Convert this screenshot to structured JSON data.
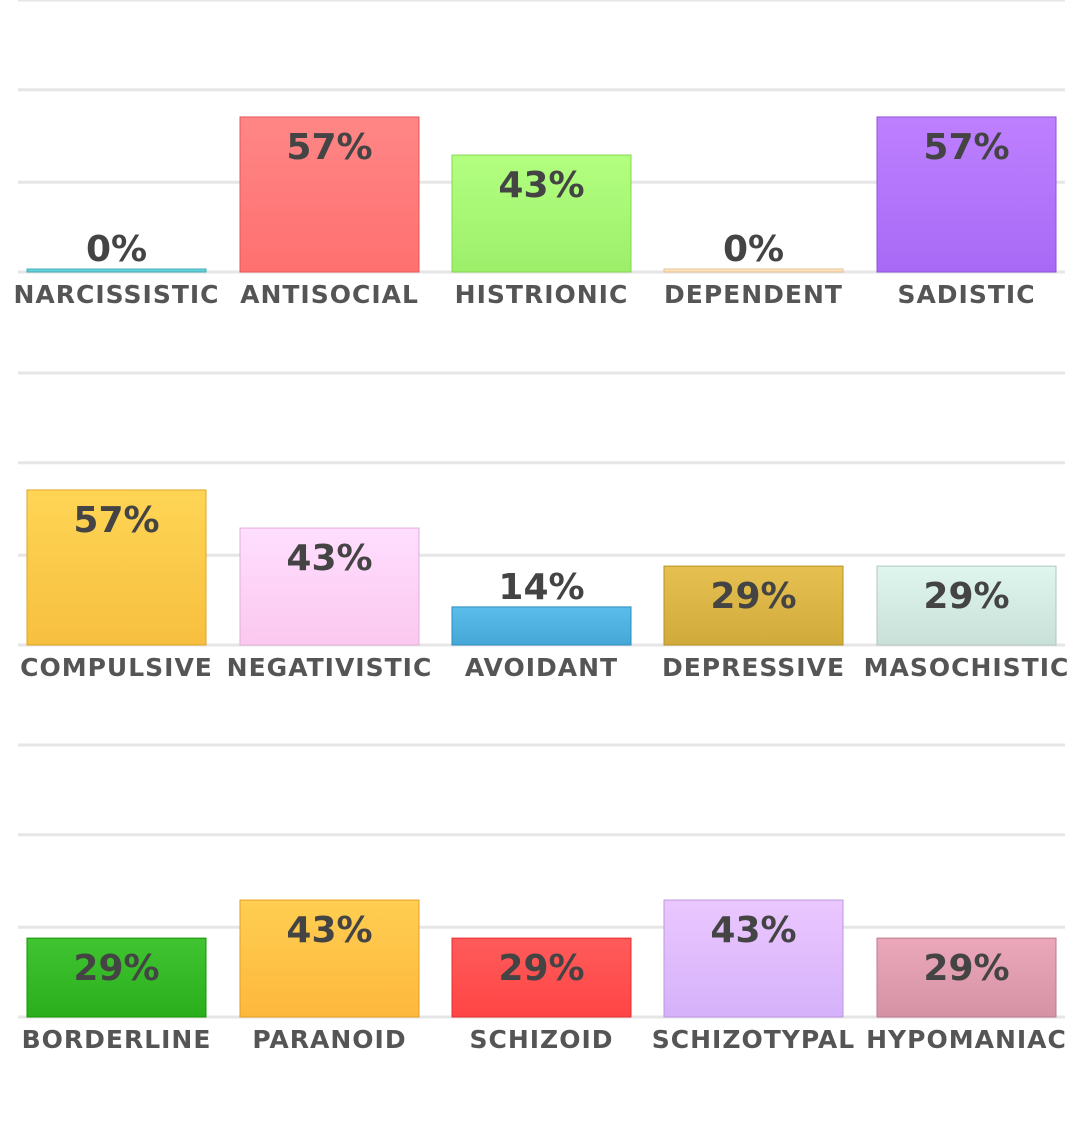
{
  "chart_data": [
    {
      "type": "bar",
      "categories": [
        "NARCISSISTIC",
        "ANTISOCIAL",
        "HISTRIONIC",
        "DEPENDENT",
        "SADISTIC"
      ],
      "values": [
        0,
        57,
        43,
        0,
        57
      ],
      "value_labels": [
        "0%",
        "57%",
        "43%",
        "0%",
        "57%"
      ],
      "colors": [
        "#5cc6d0",
        "#ff7070",
        "#9def6a",
        "#ffd9b0",
        "#a86af5"
      ],
      "ylim": [
        0,
        100
      ],
      "grid": true
    },
    {
      "type": "bar",
      "categories": [
        "COMPULSIVE",
        "NEGATIVISTIC",
        "AVOIDANT",
        "DEPRESSIVE",
        "MASOCHISTIC"
      ],
      "values": [
        57,
        43,
        14,
        29,
        29
      ],
      "value_labels": [
        "57%",
        "43%",
        "14%",
        "29%",
        "29%"
      ],
      "colors": [
        "#f7bf3f",
        "#fbc8ef",
        "#45a7d6",
        "#d0aa3a",
        "#c9e0d8"
      ],
      "ylim": [
        0,
        100
      ],
      "grid": true
    },
    {
      "type": "bar",
      "categories": [
        "BORDERLINE",
        "PARANOID",
        "SCHIZOID",
        "SCHIZOTYPAL",
        "HYPOMANIAC"
      ],
      "values": [
        29,
        43,
        29,
        43,
        29
      ],
      "value_labels": [
        "29%",
        "43%",
        "29%",
        "43%",
        "29%"
      ],
      "colors": [
        "#2aae1b",
        "#fdb83c",
        "#ff4545",
        "#d5b1fa",
        "#d492a4"
      ],
      "ylim": [
        0,
        100
      ],
      "grid": true
    }
  ]
}
